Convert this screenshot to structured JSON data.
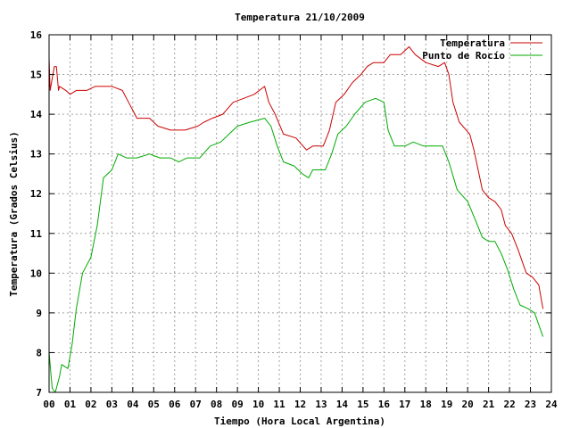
{
  "chart_data": {
    "type": "line",
    "title": "Temperatura 21/10/2009",
    "xlabel": "Tiempo (Hora Local Argentina)",
    "ylabel": "Temperatura (Grados Celsius)",
    "xlim": [
      0,
      24
    ],
    "ylim": [
      7,
      16
    ],
    "x_ticks": [
      "00",
      "01",
      "02",
      "03",
      "04",
      "05",
      "06",
      "07",
      "08",
      "09",
      "10",
      "11",
      "12",
      "13",
      "14",
      "15",
      "16",
      "17",
      "18",
      "19",
      "20",
      "21",
      "22",
      "23",
      "24"
    ],
    "y_ticks": [
      "7",
      "8",
      "9",
      "10",
      "11",
      "12",
      "13",
      "14",
      "15",
      "16"
    ],
    "grid": true,
    "legend_position": "top-right",
    "series": [
      {
        "name": "Temperatura",
        "color": "#cc0000",
        "points": [
          [
            0.0,
            15.4
          ],
          [
            0.05,
            14.6
          ],
          [
            0.15,
            14.9
          ],
          [
            0.25,
            15.2
          ],
          [
            0.35,
            15.2
          ],
          [
            0.45,
            14.6
          ],
          [
            0.5,
            14.7
          ],
          [
            0.8,
            14.6
          ],
          [
            1.0,
            14.5
          ],
          [
            1.3,
            14.6
          ],
          [
            1.8,
            14.6
          ],
          [
            2.2,
            14.7
          ],
          [
            3.0,
            14.7
          ],
          [
            3.5,
            14.6
          ],
          [
            3.8,
            14.3
          ],
          [
            4.2,
            13.9
          ],
          [
            4.8,
            13.9
          ],
          [
            5.2,
            13.7
          ],
          [
            5.8,
            13.6
          ],
          [
            6.5,
            13.6
          ],
          [
            7.1,
            13.7
          ],
          [
            7.4,
            13.8
          ],
          [
            7.8,
            13.9
          ],
          [
            8.3,
            14.0
          ],
          [
            8.8,
            14.3
          ],
          [
            9.3,
            14.4
          ],
          [
            9.8,
            14.5
          ],
          [
            10.3,
            14.7
          ],
          [
            10.5,
            14.3
          ],
          [
            10.8,
            14.0
          ],
          [
            11.2,
            13.5
          ],
          [
            11.8,
            13.4
          ],
          [
            12.3,
            13.1
          ],
          [
            12.6,
            13.2
          ],
          [
            13.1,
            13.2
          ],
          [
            13.4,
            13.6
          ],
          [
            13.7,
            14.3
          ],
          [
            14.1,
            14.5
          ],
          [
            14.5,
            14.8
          ],
          [
            14.9,
            15.0
          ],
          [
            15.2,
            15.2
          ],
          [
            15.5,
            15.3
          ],
          [
            16.0,
            15.3
          ],
          [
            16.3,
            15.5
          ],
          [
            16.8,
            15.5
          ],
          [
            17.2,
            15.7
          ],
          [
            17.5,
            15.5
          ],
          [
            18.0,
            15.3
          ],
          [
            18.6,
            15.2
          ],
          [
            18.9,
            15.3
          ],
          [
            19.1,
            15.0
          ],
          [
            19.3,
            14.3
          ],
          [
            19.6,
            13.8
          ],
          [
            20.1,
            13.5
          ],
          [
            20.3,
            13.1
          ],
          [
            20.5,
            12.6
          ],
          [
            20.7,
            12.1
          ],
          [
            21.0,
            11.9
          ],
          [
            21.3,
            11.8
          ],
          [
            21.6,
            11.6
          ],
          [
            21.8,
            11.2
          ],
          [
            22.1,
            11.0
          ],
          [
            22.4,
            10.6
          ],
          [
            22.8,
            10.0
          ],
          [
            23.1,
            9.9
          ],
          [
            23.4,
            9.7
          ],
          [
            23.6,
            9.1
          ]
        ]
      },
      {
        "name": "Punto de Rocío",
        "color": "#00aa00",
        "points": [
          [
            0.0,
            8.0
          ],
          [
            0.15,
            7.1
          ],
          [
            0.3,
            7.0
          ],
          [
            0.5,
            7.4
          ],
          [
            0.6,
            7.7
          ],
          [
            0.9,
            7.6
          ],
          [
            1.1,
            8.2
          ],
          [
            1.3,
            9.1
          ],
          [
            1.6,
            10.0
          ],
          [
            2.0,
            10.4
          ],
          [
            2.3,
            11.2
          ],
          [
            2.6,
            12.4
          ],
          [
            3.0,
            12.6
          ],
          [
            3.3,
            13.0
          ],
          [
            3.7,
            12.9
          ],
          [
            4.2,
            12.9
          ],
          [
            4.8,
            13.0
          ],
          [
            5.3,
            12.9
          ],
          [
            5.8,
            12.9
          ],
          [
            6.2,
            12.8
          ],
          [
            6.6,
            12.9
          ],
          [
            7.2,
            12.9
          ],
          [
            7.7,
            13.2
          ],
          [
            8.2,
            13.3
          ],
          [
            8.6,
            13.5
          ],
          [
            9.0,
            13.7
          ],
          [
            9.6,
            13.8
          ],
          [
            10.3,
            13.9
          ],
          [
            10.6,
            13.7
          ],
          [
            10.9,
            13.2
          ],
          [
            11.2,
            12.8
          ],
          [
            11.7,
            12.7
          ],
          [
            12.1,
            12.5
          ],
          [
            12.4,
            12.4
          ],
          [
            12.6,
            12.6
          ],
          [
            13.2,
            12.6
          ],
          [
            13.5,
            13.0
          ],
          [
            13.8,
            13.5
          ],
          [
            14.2,
            13.7
          ],
          [
            14.6,
            14.0
          ],
          [
            15.1,
            14.3
          ],
          [
            15.6,
            14.4
          ],
          [
            16.0,
            14.3
          ],
          [
            16.2,
            13.6
          ],
          [
            16.5,
            13.2
          ],
          [
            17.0,
            13.2
          ],
          [
            17.4,
            13.3
          ],
          [
            17.9,
            13.2
          ],
          [
            18.2,
            13.2
          ],
          [
            18.8,
            13.2
          ],
          [
            19.1,
            12.8
          ],
          [
            19.5,
            12.1
          ],
          [
            20.0,
            11.8
          ],
          [
            20.4,
            11.3
          ],
          [
            20.7,
            10.9
          ],
          [
            21.0,
            10.8
          ],
          [
            21.3,
            10.8
          ],
          [
            21.6,
            10.5
          ],
          [
            21.9,
            10.1
          ],
          [
            22.2,
            9.6
          ],
          [
            22.5,
            9.2
          ],
          [
            22.9,
            9.1
          ],
          [
            23.2,
            9.0
          ],
          [
            23.4,
            8.7
          ],
          [
            23.6,
            8.4
          ]
        ]
      }
    ]
  }
}
